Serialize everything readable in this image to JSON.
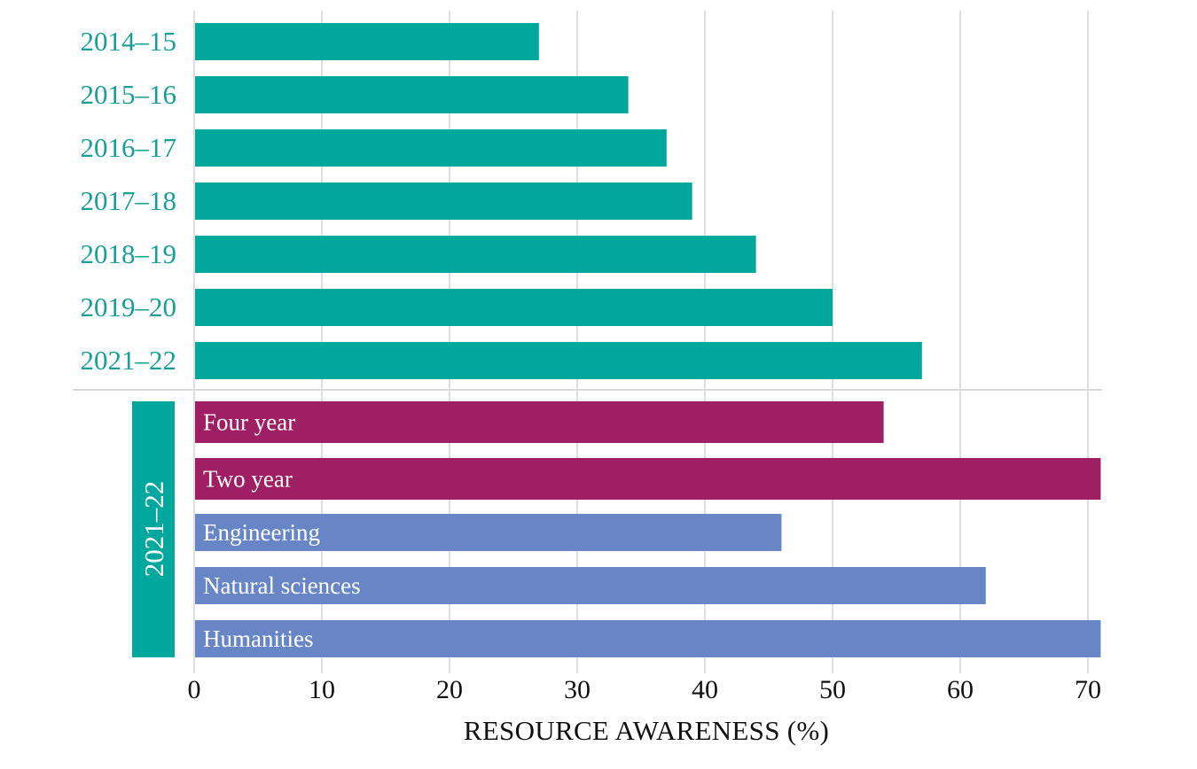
{
  "chart_data": {
    "type": "bar",
    "orientation": "horizontal",
    "title": "",
    "xlabel": "RESOURCE AWARENESS (%)",
    "ylabel": "",
    "xlim": [
      0,
      71
    ],
    "xticks": [
      0,
      10,
      20,
      30,
      40,
      50,
      60,
      70
    ],
    "grid": true,
    "colors": {
      "year": "#00A79D",
      "institution": "#9E1F63",
      "field": "#6886C5",
      "year_label": "#1A9E96"
    },
    "panels": [
      {
        "name": "by-year",
        "group_label": "",
        "categories": [
          "2014–15",
          "2015–16",
          "2016–17",
          "2017–18",
          "2018–19",
          "2019–20",
          "2021–22"
        ],
        "values": [
          27,
          34,
          37,
          39,
          44,
          50,
          57
        ],
        "color_key": "year",
        "label_position": "left"
      },
      {
        "name": "2021-22-breakdown",
        "group_label": "2021–22",
        "categories": [
          "Four year",
          "Two year",
          "Engineering",
          "Natural sciences",
          "Humanities"
        ],
        "values": [
          54,
          71,
          46,
          62,
          71
        ],
        "color_keys": [
          "institution",
          "institution",
          "field",
          "field",
          "field"
        ],
        "label_position": "inside"
      }
    ]
  }
}
